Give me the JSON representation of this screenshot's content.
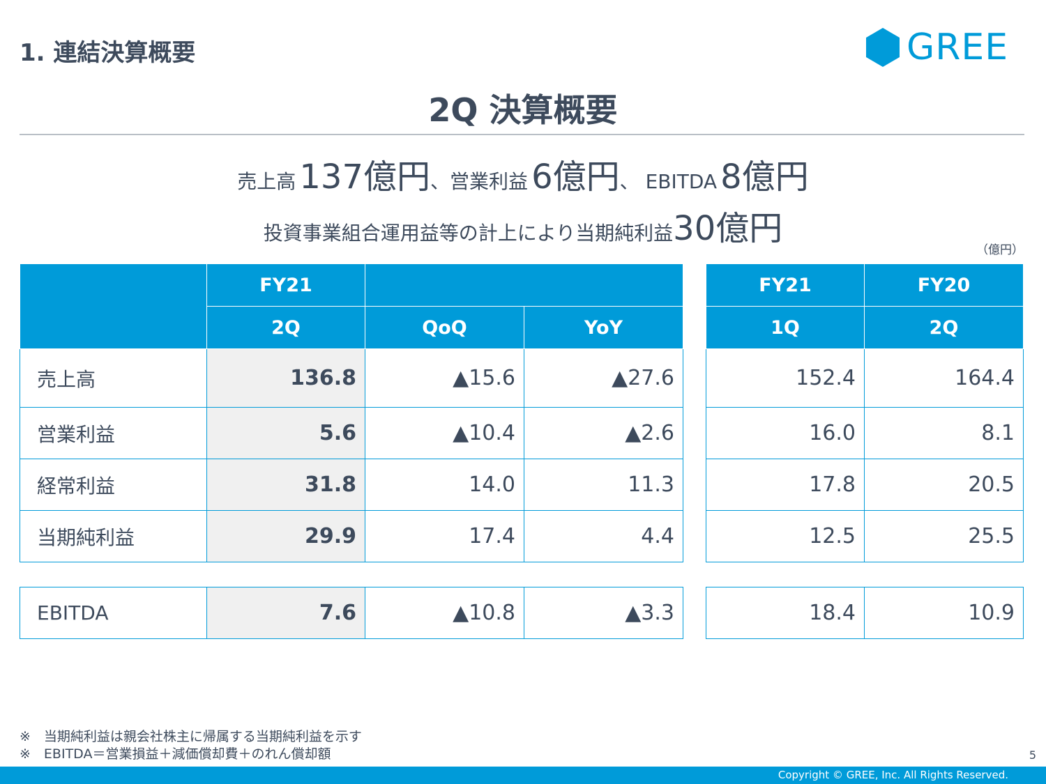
{
  "section_title": "1. 連結決算概要",
  "logo": {
    "text": "GREE",
    "icon": "hexagon-logo-icon",
    "color": "#009bd9"
  },
  "main_title": "2Q 決算概要",
  "headline1": {
    "a": "売上高",
    "b": "137億円",
    "c": "、営業利益",
    "d": "6億円",
    "e": "、 EBITDA",
    "f": "8億円"
  },
  "headline2": {
    "a": "投資事業組合運用益等の計上により当期純利益",
    "b": "30億円"
  },
  "unit": "（億円）",
  "table_main": {
    "header1": [
      "",
      "FY21",
      ""
    ],
    "header2": [
      "2Q",
      "QoQ",
      "YoY"
    ],
    "rows": [
      {
        "label": "売上高",
        "v2q": "136.8",
        "qoq": "▲15.6",
        "yoy": "▲27.6"
      },
      {
        "label": "営業利益",
        "v2q": "5.6",
        "qoq": "▲10.4",
        "yoy": "▲2.6"
      },
      {
        "label": "経常利益",
        "v2q": "31.8",
        "qoq": "14.0",
        "yoy": "11.3"
      },
      {
        "label": "当期純利益",
        "v2q": "29.9",
        "qoq": "17.4",
        "yoy": "4.4"
      }
    ],
    "ebitda": {
      "label": "EBITDA",
      "v2q": "7.6",
      "qoq": "▲10.8",
      "yoy": "▲3.3"
    }
  },
  "table_side": {
    "header1": [
      "FY21",
      "FY20"
    ],
    "header2": [
      "1Q",
      "2Q"
    ],
    "rows": [
      [
        "152.4",
        "164.4"
      ],
      [
        "16.0",
        "8.1"
      ],
      [
        "17.8",
        "20.5"
      ],
      [
        "12.5",
        "25.5"
      ]
    ],
    "ebitda": [
      "18.4",
      "10.9"
    ]
  },
  "notes": [
    "※　当期純利益は親会社株主に帰属する当期純利益を示す",
    "※　EBITDA＝営業損益＋減価償却費＋のれん償却額"
  ],
  "page_number": "5",
  "copyright": "Copyright © GREE, Inc. All Rights Reserved."
}
